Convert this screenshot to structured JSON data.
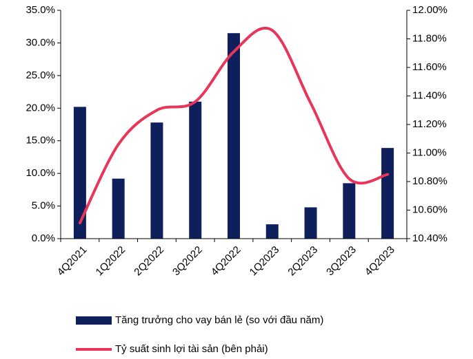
{
  "chart_data": {
    "type": "bar_line",
    "categories": [
      "4Q2021",
      "1Q2022",
      "2Q2022",
      "3Q2022",
      "4Q2022",
      "1Q2023",
      "2Q2023",
      "3Q2023",
      "4Q2023"
    ],
    "series": [
      {
        "name": "Tăng trưởng cho vay bán lẻ (so với đầu năm)",
        "color": "#0f1f5c",
        "type": "bar",
        "axis": "y",
        "values": [
          20.2,
          9.2,
          17.8,
          21.0,
          31.5,
          2.2,
          4.8,
          8.5,
          13.9
        ]
      },
      {
        "name": "Tỷ suất sinh lợi tài sản (bên phải)",
        "color": "#e8365b",
        "type": "line",
        "axis": "y2",
        "values": [
          10.51,
          11.06,
          11.3,
          11.36,
          11.71,
          11.86,
          11.35,
          10.82,
          10.85
        ]
      }
    ],
    "ylim": [
      0,
      35
    ],
    "yticks": [
      {
        "value": 0,
        "label": "0.0%"
      },
      {
        "value": 5,
        "label": "5.0%"
      },
      {
        "value": 10,
        "label": "10.0%"
      },
      {
        "value": 15,
        "label": "15.0%"
      },
      {
        "value": 20,
        "label": "20.0%"
      },
      {
        "value": 25,
        "label": "25.0%"
      },
      {
        "value": 30,
        "label": "30.0%"
      },
      {
        "value": 35,
        "label": "35.0%"
      }
    ],
    "y2lim": [
      10.4,
      12.0
    ],
    "y2ticks": [
      {
        "value": 10.4,
        "label": "10.40%"
      },
      {
        "value": 10.6,
        "label": "10.60%"
      },
      {
        "value": 10.8,
        "label": "10.80%"
      },
      {
        "value": 11.0,
        "label": "11.00%"
      },
      {
        "value": 11.2,
        "label": "11.20%"
      },
      {
        "value": 11.4,
        "label": "11.40%"
      },
      {
        "value": 11.6,
        "label": "11.60%"
      },
      {
        "value": 11.8,
        "label": "11.80%"
      },
      {
        "value": 12.0,
        "label": "12.00%"
      }
    ],
    "grid": false,
    "legend": "bottom"
  }
}
